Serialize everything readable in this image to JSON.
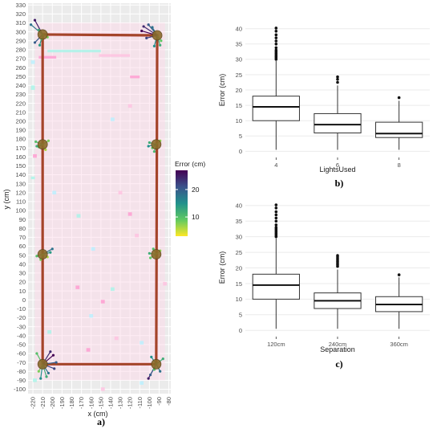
{
  "chart_data": [
    {
      "panel": "a)",
      "type": "scatter",
      "xlabel": "x (cm)",
      "ylabel": "y (cm)",
      "xlim": [
        -225,
        -78
      ],
      "ylim": [
        -105,
        332
      ],
      "xticks": [
        -220,
        -210,
        -200,
        -190,
        -180,
        -170,
        -160,
        -150,
        -140,
        -130,
        -120,
        -110,
        -100,
        -90,
        -80
      ],
      "yticks": [
        -100,
        -90,
        -80,
        -70,
        -60,
        -50,
        -40,
        -30,
        -20,
        -10,
        0,
        10,
        20,
        30,
        40,
        50,
        60,
        70,
        80,
        90,
        100,
        110,
        120,
        130,
        140,
        150,
        160,
        170,
        180,
        190,
        200,
        210,
        220,
        230,
        240,
        250,
        260,
        270,
        280,
        290,
        300,
        310,
        320,
        330
      ],
      "legend": {
        "title": "Error (cm)",
        "ticks": [
          10,
          20
        ],
        "range": [
          3,
          27
        ],
        "colors": [
          "#fde725",
          "#5ec962",
          "#21918c",
          "#3b528b",
          "#440154"
        ]
      },
      "path": [
        [
          -210,
          297
        ],
        [
          -92,
          296
        ],
        [
          -93,
          -72
        ],
        [
          -210,
          -72
        ],
        [
          -210,
          297
        ]
      ],
      "markers": [
        [
          -210,
          297
        ],
        [
          -92,
          296
        ],
        [
          -210,
          174
        ],
        [
          -93,
          174
        ],
        [
          -210,
          51
        ],
        [
          -93,
          51
        ],
        [
          -210,
          -72
        ],
        [
          -93,
          -72
        ]
      ],
      "clusters": [
        {
          "c": [
            -210,
            297
          ],
          "r": [
            [
              -218,
              313,
              25
            ],
            [
              -222,
              308,
              18
            ],
            [
              -214,
              302,
              12
            ],
            [
              -213,
              285,
              14
            ],
            [
              -218,
              288,
              20
            ],
            [
              -205,
              294,
              8
            ],
            [
              -211,
              292,
              10
            ]
          ]
        },
        {
          "c": [
            -92,
            296
          ],
          "r": [
            [
              -108,
              301,
              27
            ],
            [
              -106,
              306,
              24
            ],
            [
              -101,
              308,
              20
            ],
            [
              -97,
              305,
              18
            ],
            [
              -89,
              285,
              12
            ],
            [
              -95,
              284,
              15
            ],
            [
              -103,
              293,
              22
            ],
            [
              -88,
              290,
              9
            ]
          ]
        },
        {
          "c": [
            -210,
            174
          ],
          "r": [
            [
              -217,
              177,
              10
            ],
            [
              -214,
              171,
              9
            ],
            [
              -204,
              178,
              8
            ],
            [
              -207,
              168,
              6
            ],
            [
              -216,
              172,
              12
            ]
          ]
        },
        {
          "c": [
            -93,
            174
          ],
          "r": [
            [
              -100,
              176,
              12
            ],
            [
              -97,
              170,
              9
            ],
            [
              -89,
              178,
              7
            ],
            [
              -95,
              166,
              11
            ],
            [
              -101,
              172,
              15
            ]
          ]
        },
        {
          "c": [
            -210,
            51
          ],
          "r": [
            [
              -200,
              57,
              18
            ],
            [
              -202,
              53,
              14
            ],
            [
              -216,
              49,
              10
            ],
            [
              -212,
              45,
              8
            ],
            [
              -205,
              48,
              6
            ]
          ]
        },
        {
          "c": [
            -93,
            51
          ],
          "r": [
            [
              -100,
              52,
              12
            ],
            [
              -99,
              47,
              9
            ],
            [
              -89,
              55,
              7
            ],
            [
              -96,
              57,
              10
            ]
          ]
        },
        {
          "c": [
            -210,
            -72
          ],
          "r": [
            [
              -199,
              -62,
              27
            ],
            [
              -196,
              -70,
              20
            ],
            [
              -198,
              -77,
              22
            ],
            [
              -204,
              -82,
              18
            ],
            [
              -212,
              -88,
              15
            ],
            [
              -206,
              -86,
              12
            ],
            [
              -216,
              -60,
              10
            ],
            [
              -202,
              -58,
              24
            ],
            [
              -214,
              -80,
              8
            ]
          ]
        },
        {
          "c": [
            -93,
            -72
          ],
          "r": [
            [
              -101,
              -88,
              25
            ],
            [
              -99,
              -84,
              20
            ],
            [
              -86,
              -66,
              12
            ],
            [
              -98,
              -64,
              15
            ],
            [
              -89,
              -80,
              18
            ],
            [
              -95,
              -78,
              10
            ]
          ]
        }
      ],
      "noise": [
        [
          -214,
          270,
          -196,
          273
        ],
        [
          -205,
          277,
          -150,
          280
        ],
        [
          -152,
          272,
          -120,
          275
        ],
        [
          -222,
          264,
          -218,
          268
        ],
        [
          -120,
          248,
          -110,
          251
        ],
        [
          -222,
          235,
          -218,
          240
        ],
        [
          -122,
          215,
          -118,
          219
        ],
        [
          -140,
          200,
          -136,
          204
        ],
        [
          -220,
          159,
          -216,
          163
        ],
        [
          -222,
          135,
          -218,
          138
        ],
        [
          -132,
          118,
          -128,
          122
        ],
        [
          -200,
          118,
          -196,
          122
        ],
        [
          -122,
          94,
          -118,
          98
        ],
        [
          -175,
          92,
          -171,
          96
        ],
        [
          -115,
          70,
          -111,
          74
        ],
        [
          -160,
          55,
          -156,
          59
        ],
        [
          -176,
          12,
          -172,
          16
        ],
        [
          -140,
          10,
          -136,
          14
        ],
        [
          -86,
          16,
          -82,
          20
        ],
        [
          -162,
          -20,
          -158,
          -16
        ],
        [
          -150,
          -4,
          -146,
          0
        ],
        [
          -205,
          -38,
          -201,
          -34
        ],
        [
          -136,
          -45,
          -132,
          -41
        ],
        [
          -110,
          -50,
          -106,
          -46
        ],
        [
          -165,
          -58,
          -161,
          -54
        ],
        [
          -220,
          -92,
          -216,
          -88
        ],
        [
          -150,
          -102,
          -146,
          -98
        ],
        [
          -110,
          -95,
          -106,
          -91
        ]
      ]
    },
    {
      "panel": "b)",
      "type": "box",
      "xlabel": "LightsUsed",
      "ylabel": "Error (cm)",
      "ylim": [
        -2,
        41.5
      ],
      "yticks": [
        0,
        5,
        10,
        15,
        20,
        25,
        30,
        35,
        40
      ],
      "boxes": [
        {
          "category": "4",
          "whisker_low": 0.5,
          "q1": 10,
          "median": 14.5,
          "q3": 18,
          "whisker_high": 29.5,
          "outliers": [
            30,
            30.5,
            31,
            31.5,
            32,
            32.5,
            33,
            33.8,
            35,
            36,
            37,
            38,
            39.2,
            40.2
          ]
        },
        {
          "category": "6",
          "whisker_low": 0.5,
          "q1": 6,
          "median": 8.7,
          "q3": 12.3,
          "whisker_high": 21.5,
          "outliers": [
            22.5,
            23.5,
            24.3
          ]
        },
        {
          "category": "8",
          "whisker_low": 0.5,
          "q1": 4.5,
          "median": 5.8,
          "q3": 9.5,
          "whisker_high": 16.5,
          "outliers": [
            17.5
          ]
        }
      ]
    },
    {
      "panel": "c)",
      "type": "box",
      "xlabel": "Separation",
      "ylabel": "Error (cm)",
      "ylim": [
        -2,
        41.5
      ],
      "yticks": [
        0,
        5,
        10,
        15,
        20,
        25,
        30,
        35,
        40
      ],
      "boxes": [
        {
          "category": "120cm",
          "whisker_low": 0.5,
          "q1": 10,
          "median": 14.5,
          "q3": 18,
          "whisker_high": 29.5,
          "outliers": [
            30,
            30.5,
            31,
            31.5,
            32,
            32.5,
            33,
            33.8,
            35,
            36,
            37,
            38,
            39.2,
            40.2
          ]
        },
        {
          "category": "240cm",
          "whisker_low": 0.5,
          "q1": 7,
          "median": 9.5,
          "q3": 12,
          "whisker_high": 19.5,
          "outliers": [
            20.5,
            21,
            21.5,
            22,
            22.5,
            23,
            23.5,
            24
          ]
        },
        {
          "category": "360cm",
          "whisker_low": 0.5,
          "q1": 6,
          "median": 8.3,
          "q3": 10.8,
          "whisker_high": 17,
          "outliers": [
            17.8
          ]
        }
      ]
    }
  ]
}
